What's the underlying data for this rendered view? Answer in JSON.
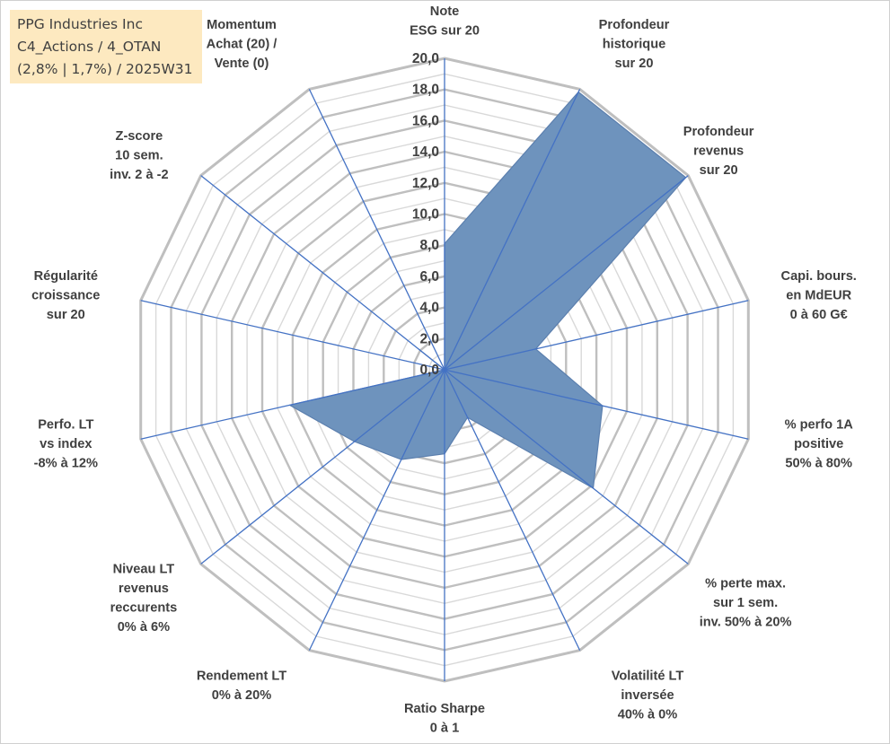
{
  "title_box": {
    "line1": "PPG Industries Inc",
    "line2": "C4_Actions / 4_OTAN",
    "line3": "(2,8% | 1,7%) / 2025W31"
  },
  "chart_data": {
    "type": "radar",
    "title": "",
    "rmin": 0,
    "rmax": 20,
    "tick_step": 2,
    "ticks": [
      "0,0",
      "2,0",
      "4,0",
      "6,0",
      "8,0",
      "10,0",
      "12,0",
      "14,0",
      "16,0",
      "18,0",
      "20,0"
    ],
    "grid": true,
    "axes": [
      {
        "label": [
          "Note",
          "ESG sur 20"
        ],
        "value": 8.1
      },
      {
        "label": [
          "Profondeur",
          "historique",
          "sur 20"
        ],
        "value": 19.8
      },
      {
        "label": [
          "Profondeur",
          "revenus",
          "sur 20"
        ],
        "value": 19.8
      },
      {
        "label": [
          "Capi. bours.",
          "en MdEUR",
          "0 à 60 G€"
        ],
        "value": 6.0
      },
      {
        "label": [
          "% perfo 1A",
          "positive",
          "50% à 80%"
        ],
        "value": 10.4
      },
      {
        "label": [
          "% perte max.",
          "sur 1 sem.",
          "inv. 50% à 20%"
        ],
        "value": 12.2
      },
      {
        "label": [
          "Volatilité LT",
          "inversée",
          "40% à 0%"
        ],
        "value": 3.4
      },
      {
        "label": [
          "Ratio Sharpe",
          "0 à 1"
        ],
        "value": 5.4
      },
      {
        "label": [
          "Rendement LT",
          "0% à 20%"
        ],
        "value": 6.4
      },
      {
        "label": [
          "Niveau LT",
          "revenus",
          "reccurents",
          "0% à 6%"
        ],
        "value": 7.4
      },
      {
        "label": [
          "Perfo. LT",
          "vs index",
          "-8% à 12%"
        ],
        "value": 10.2
      },
      {
        "label": [
          "Régularité",
          "croissance",
          "sur 20"
        ],
        "value": 0.0
      },
      {
        "label": [
          "Z-score",
          "10 sem.",
          "inv. 2 à -2"
        ],
        "value": 2.1
      },
      {
        "label": [
          "Momentum",
          "Achat (20) /",
          "Vente (0)"
        ],
        "value": 0.0
      }
    ],
    "colors": {
      "fill": "#6e93bd",
      "edge": "#5b7fae",
      "axis": "#4472c4",
      "grid_major": "#bfbfbf",
      "grid_minor": "#d9d9d9"
    }
  }
}
